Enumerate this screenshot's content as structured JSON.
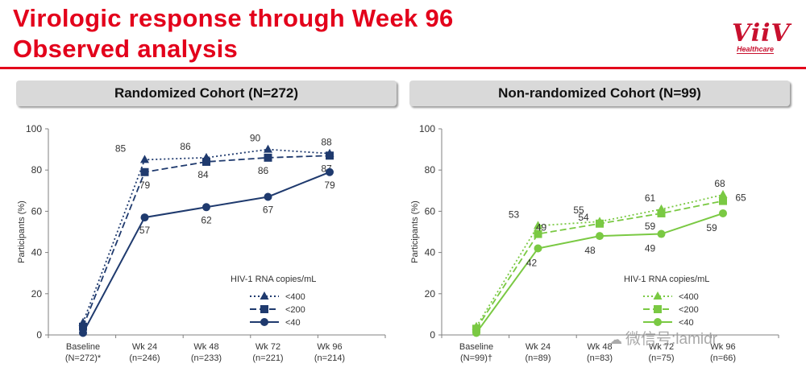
{
  "header": {
    "title_line1": "Virologic response through Week 96",
    "title_line2": "Observed analysis",
    "logo_word": "ViiV",
    "logo_sub": "Healthcare"
  },
  "watermark": "微信号:lamidr",
  "colors": {
    "accent": "#e3001b",
    "randomized": "#1f3a6e",
    "nonrandomized": "#7ac943"
  },
  "chart_data": [
    {
      "type": "line",
      "panel_title": "Randomized Cohort (N=272)",
      "ylabel": "Participants (%)",
      "ylim": [
        0,
        100
      ],
      "yticks": [
        0,
        20,
        40,
        60,
        80,
        100
      ],
      "categories": [
        [
          "Baseline",
          "(N=272)*"
        ],
        [
          "Wk 24",
          "(n=246)"
        ],
        [
          "Wk 48",
          "(n=233)"
        ],
        [
          "Wk 72",
          "(n=221)"
        ],
        [
          "Wk 96",
          "(n=214)"
        ]
      ],
      "legend_title": "HIV-1 RNA copies/mL",
      "color": "#1f3a6e",
      "series": [
        {
          "name": "<400",
          "marker": "triangle",
          "dash": "dot",
          "values": [
            6,
            85,
            86,
            90,
            88
          ],
          "labels": [
            "",
            "85",
            "86",
            "90",
            "88"
          ]
        },
        {
          "name": "<200",
          "marker": "square",
          "dash": "dash",
          "values": [
            4,
            79,
            84,
            86,
            87
          ],
          "labels": [
            "",
            "79",
            "84",
            "86",
            "87"
          ]
        },
        {
          "name": "<40",
          "marker": "circle",
          "dash": "solid",
          "values": [
            1,
            57,
            62,
            67,
            79
          ],
          "labels": [
            "",
            "57",
            "62",
            "67",
            "79"
          ]
        }
      ]
    },
    {
      "type": "line",
      "panel_title": "Non-randomized Cohort (N=99)",
      "ylabel": "Participants (%)",
      "ylim": [
        0,
        100
      ],
      "yticks": [
        0,
        20,
        40,
        60,
        80,
        100
      ],
      "categories": [
        [
          "Baseline",
          "(N=99)†"
        ],
        [
          "Wk 24",
          "(n=89)"
        ],
        [
          "Wk 48",
          "(n=83)"
        ],
        [
          "Wk 72",
          "(n=75)"
        ],
        [
          "Wk 96",
          "(n=66)"
        ]
      ],
      "legend_title": "HIV-1 RNA copies/mL",
      "color": "#7ac943",
      "series": [
        {
          "name": "<400",
          "marker": "triangle",
          "dash": "dot",
          "values": [
            4,
            53,
            55,
            61,
            68
          ],
          "labels": [
            "",
            "53",
            "55",
            "61",
            "68"
          ]
        },
        {
          "name": "<200",
          "marker": "square",
          "dash": "dash",
          "values": [
            3,
            49,
            54,
            59,
            65
          ],
          "labels": [
            "",
            "49",
            "54",
            "59",
            "65"
          ]
        },
        {
          "name": "<40",
          "marker": "circle",
          "dash": "solid",
          "values": [
            1,
            42,
            48,
            49,
            59
          ],
          "labels": [
            "",
            "42",
            "48",
            "49",
            "59"
          ]
        }
      ]
    }
  ]
}
